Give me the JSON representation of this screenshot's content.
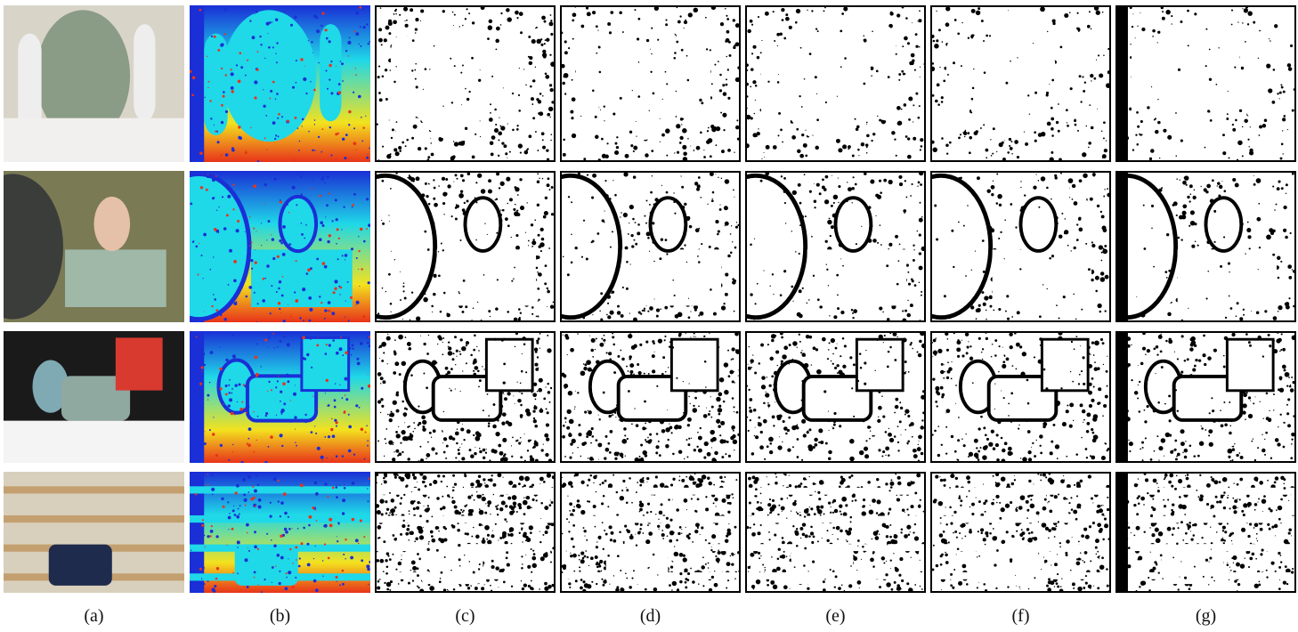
{
  "figure": {
    "columns": [
      {
        "label": "(a)",
        "kind": "rgb"
      },
      {
        "label": "(b)",
        "kind": "depth-colormap"
      },
      {
        "label": "(c)",
        "kind": "binary-map"
      },
      {
        "label": "(d)",
        "kind": "binary-map"
      },
      {
        "label": "(e)",
        "kind": "binary-map"
      },
      {
        "label": "(f)",
        "kind": "binary-map"
      },
      {
        "label": "(g)",
        "kind": "binary-map"
      }
    ],
    "rows": [
      {
        "scene": "bowling-pins-and-ball"
      },
      {
        "scene": "doll-on-box"
      },
      {
        "scene": "racket-basket-rope"
      },
      {
        "scene": "shelves-with-bag"
      }
    ],
    "colors": {
      "depth_far": "#1a2fd6",
      "depth_mid": "#1fd8e8",
      "depth_near": "#f3e21e",
      "depth_closest": "#e8331a",
      "map_fg": "#ffffff",
      "map_bg": "#000000"
    }
  }
}
